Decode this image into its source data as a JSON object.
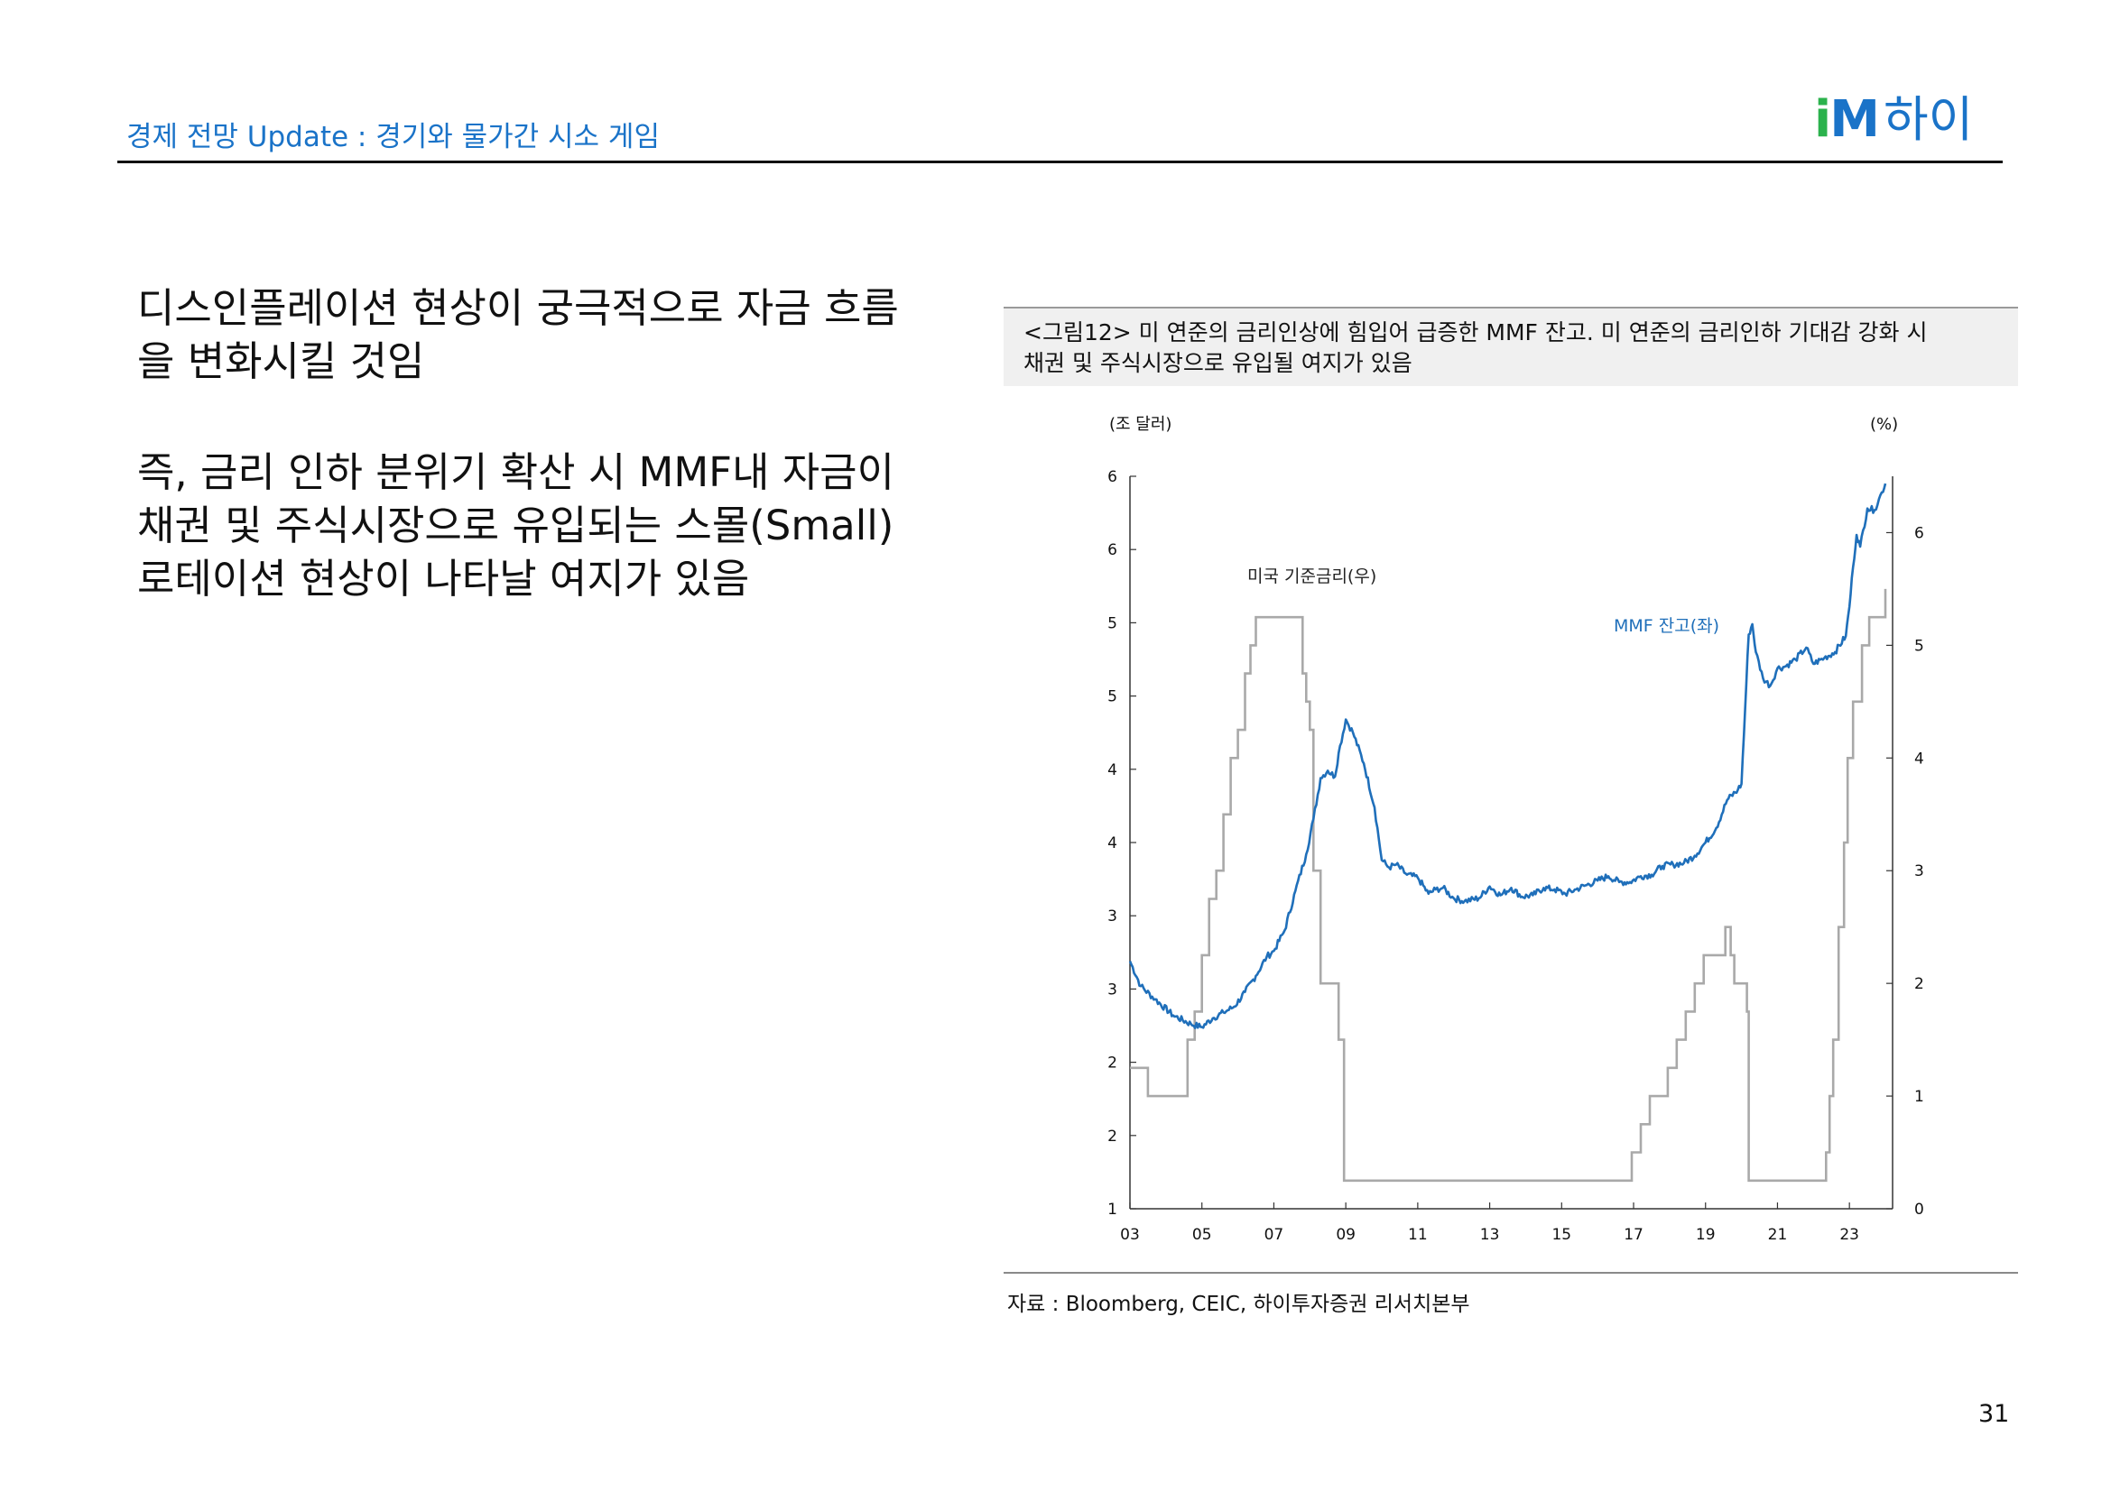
{
  "header": {
    "title": "경제 전망 Update : 경기와 물가간 시소 게임",
    "logo": {
      "im_i": "i",
      "im_m": "M",
      "brand": "하이"
    }
  },
  "main": {
    "para1": "디스인플레이션 현상이 궁극적으로 자금 흐름을 변화시킬 것임",
    "para2": "즉, 금리 인하 분위기 확산 시 MMF내 자금이 채권 및 주식시장으로 유입되는 스몰(Small) 로테이션 현상이 나타날 여지가 있음"
  },
  "figure": {
    "caption_line1": "<그림12> 미 연준의 금리인상에 힘입어 급증한 MMF 잔고. 미 연준의 금리인하 기대감 강화 시",
    "caption_line2": "채권 및 주식시장으로 유입될 여지가 있음",
    "source": "자료 : Bloomberg, CEIC, 하이투자증권 리서치본부"
  },
  "page_number": "31",
  "chart_data": {
    "type": "line",
    "y_left_unit": "(조 달러)",
    "y_right_unit": "(%)",
    "x_ticks": [
      "03",
      "05",
      "07",
      "09",
      "11",
      "13",
      "15",
      "17",
      "19",
      "21",
      "23"
    ],
    "y_left_ticks": [
      "1",
      "2",
      "2",
      "3",
      "3",
      "4",
      "4",
      "5",
      "5",
      "6",
      "6"
    ],
    "y_left_range": [
      1,
      6
    ],
    "y_right_ticks": [
      "0",
      "1",
      "2",
      "3",
      "4",
      "5",
      "6"
    ],
    "y_right_range": [
      0,
      6.5
    ],
    "x_range": [
      2003,
      2024.2
    ],
    "annotations": {
      "fed_rate": "미국 기준금리(우)",
      "mmf": "MMF 잔고(좌)"
    },
    "colors": {
      "mmf": "#1f6fba",
      "fed_rate": "#a9a9a9",
      "axis": "#333333"
    },
    "series": [
      {
        "name": "MMF 잔고(좌)",
        "axis": "left",
        "x": [
          2003.0,
          2003.3,
          2003.7,
          2004.2,
          2004.7,
          2005.0,
          2005.3,
          2005.6,
          2005.9,
          2006.2,
          2006.5,
          2006.8,
          2007.0,
          2007.3,
          2007.6,
          2007.9,
          2008.1,
          2008.3,
          2008.5,
          2008.7,
          2008.8,
          2009.0,
          2009.2,
          2009.5,
          2009.8,
          2010.0,
          2010.2,
          2010.4,
          2010.7,
          2011.0,
          2011.3,
          2011.5,
          2011.7,
          2012.0,
          2012.3,
          2012.7,
          2013.0,
          2013.3,
          2013.6,
          2013.9,
          2014.2,
          2014.5,
          2014.8,
          2015.1,
          2015.4,
          2015.7,
          2016.0,
          2016.3,
          2016.6,
          2016.9,
          2017.2,
          2017.5,
          2017.8,
          2018.1,
          2018.4,
          2018.7,
          2019.0,
          2019.3,
          2019.6,
          2019.9,
          2020.0,
          2020.1,
          2020.2,
          2020.3,
          2020.4,
          2020.6,
          2020.8,
          2021.0,
          2021.2,
          2021.5,
          2021.8,
          2022.0,
          2022.3,
          2022.6,
          2022.9,
          2023.0,
          2023.1,
          2023.2,
          2023.3,
          2023.5,
          2023.7,
          2023.9,
          2024.0
        ],
        "values": [
          2.69,
          2.52,
          2.43,
          2.32,
          2.26,
          2.24,
          2.3,
          2.34,
          2.38,
          2.48,
          2.59,
          2.72,
          2.76,
          2.9,
          3.17,
          3.42,
          3.66,
          3.94,
          3.99,
          3.95,
          4.11,
          4.34,
          4.25,
          4.04,
          3.74,
          3.38,
          3.33,
          3.35,
          3.28,
          3.26,
          3.15,
          3.18,
          3.19,
          3.12,
          3.1,
          3.12,
          3.2,
          3.14,
          3.19,
          3.13,
          3.14,
          3.19,
          3.18,
          3.15,
          3.18,
          3.21,
          3.24,
          3.27,
          3.23,
          3.23,
          3.27,
          3.28,
          3.34,
          3.35,
          3.36,
          3.41,
          3.5,
          3.6,
          3.79,
          3.86,
          3.9,
          4.41,
          4.92,
          4.99,
          4.8,
          4.62,
          4.57,
          4.69,
          4.7,
          4.75,
          4.83,
          4.72,
          4.76,
          4.8,
          4.91,
          5.11,
          5.38,
          5.6,
          5.52,
          5.78,
          5.77,
          5.89,
          5.95
        ]
      },
      {
        "name": "미국 기준금리(우)",
        "axis": "right",
        "x": [
          2003.0,
          2003.5,
          2004.5,
          2004.6,
          2004.8,
          2005.0,
          2005.2,
          2005.4,
          2005.6,
          2005.8,
          2006.0,
          2006.2,
          2006.35,
          2006.5,
          2007.7,
          2007.8,
          2007.9,
          2008.0,
          2008.1,
          2008.3,
          2008.8,
          2008.95,
          2015.95,
          2016.95,
          2017.2,
          2017.45,
          2017.95,
          2018.2,
          2018.45,
          2018.7,
          2018.95,
          2019.55,
          2019.7,
          2019.8,
          2020.15,
          2020.2,
          2022.2,
          2022.35,
          2022.45,
          2022.55,
          2022.7,
          2022.85,
          2022.95,
          2023.1,
          2023.35,
          2023.55,
          2024.0
        ],
        "values": [
          1.25,
          1.0,
          1.0,
          1.5,
          1.75,
          2.25,
          2.75,
          3.0,
          3.5,
          4.0,
          4.25,
          4.75,
          5.0,
          5.25,
          5.25,
          4.75,
          4.5,
          4.25,
          3.0,
          2.0,
          1.5,
          0.25,
          0.25,
          0.5,
          0.75,
          1.0,
          1.25,
          1.5,
          1.75,
          2.0,
          2.25,
          2.5,
          2.25,
          2.0,
          1.75,
          0.25,
          0.25,
          0.5,
          1.0,
          1.5,
          2.5,
          3.25,
          4.0,
          4.5,
          5.0,
          5.25,
          5.5
        ]
      }
    ]
  }
}
